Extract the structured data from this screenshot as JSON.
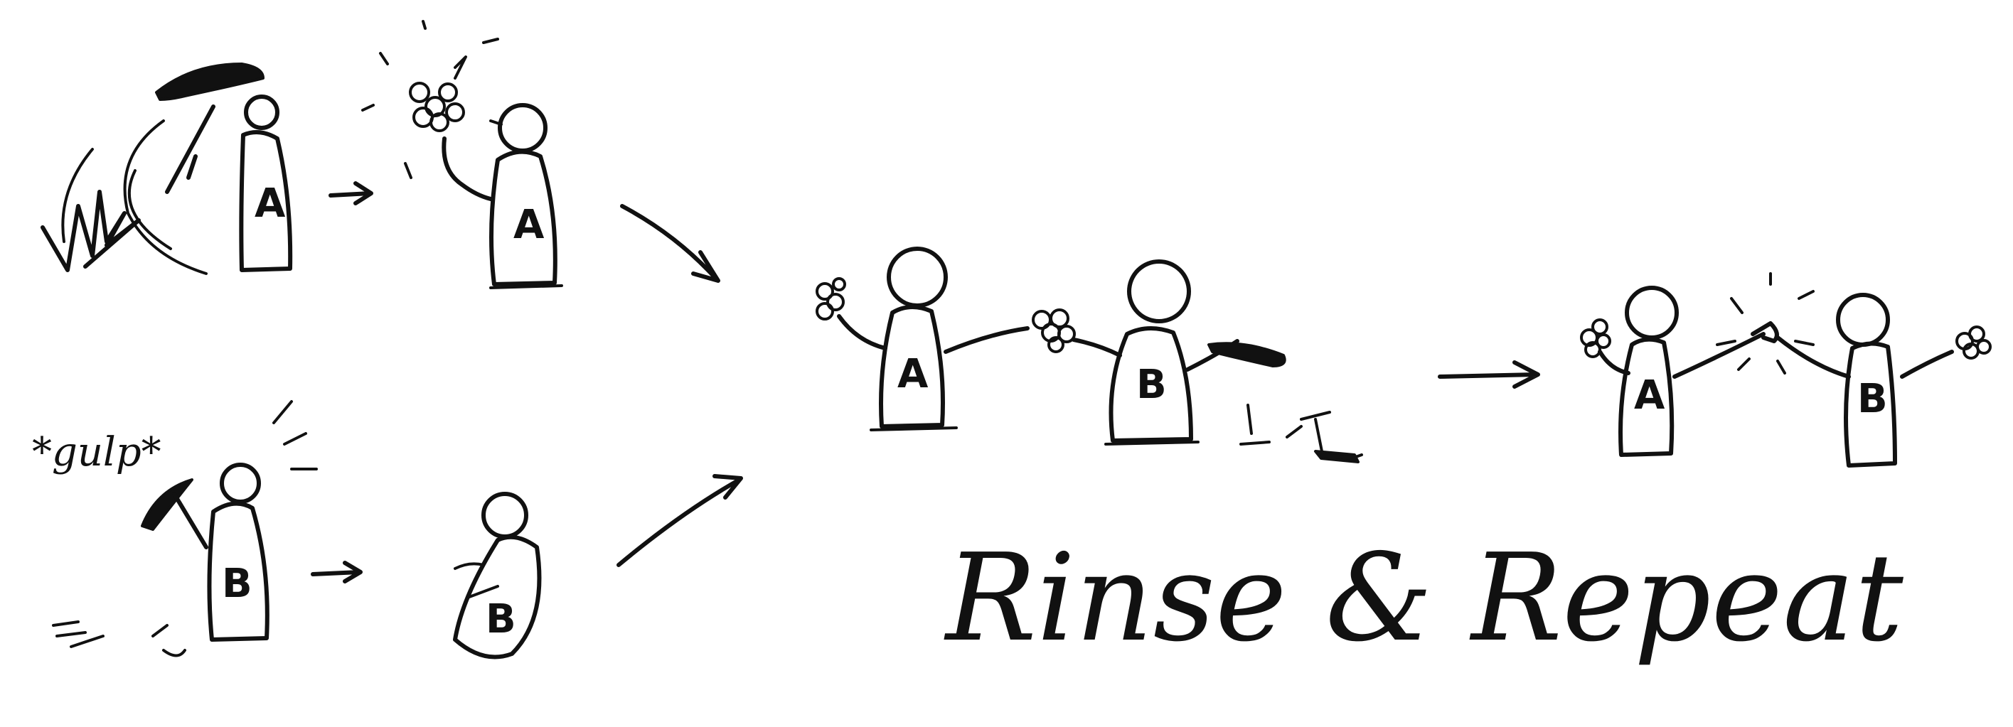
{
  "diagram": {
    "labels": {
      "person_a": "A",
      "person_b": "B"
    },
    "speech": {
      "gulp": "*gulp*"
    },
    "caption": "Rinse & Repeat",
    "colors": {
      "ink": "#111111",
      "background": "#ffffff"
    }
  }
}
